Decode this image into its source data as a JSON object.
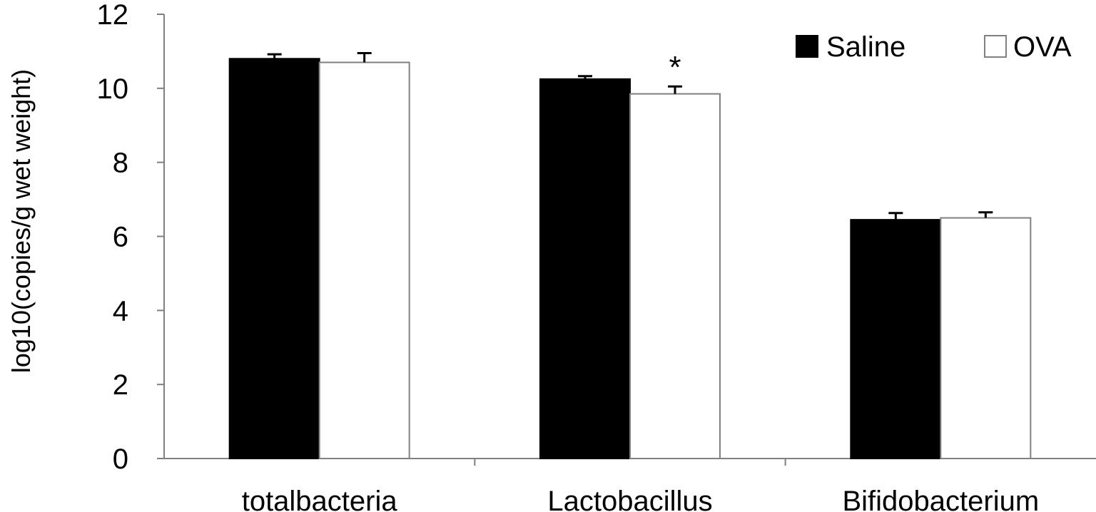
{
  "chart_data": {
    "type": "bar",
    "title": "",
    "xlabel": "",
    "ylabel": "log10(copies/g wet weight)",
    "ylim": [
      0,
      12
    ],
    "yticks": [
      0,
      2,
      4,
      6,
      8,
      10,
      12
    ],
    "grid": false,
    "legend_position": "top-right",
    "categories": [
      "totalbacteria",
      "Lactobacillus",
      "Bifidobacterium"
    ],
    "series": [
      {
        "name": "Saline",
        "color": "#000000",
        "values": [
          10.8,
          10.25,
          6.45
        ],
        "errors": [
          0.12,
          0.08,
          0.18
        ]
      },
      {
        "name": "OVA",
        "color": "#ffffff",
        "values": [
          10.7,
          9.85,
          6.5
        ],
        "errors": [
          0.25,
          0.2,
          0.15
        ]
      }
    ],
    "annotations": [
      {
        "text": "*",
        "category": "Lactobacillus",
        "series": "OVA"
      }
    ]
  }
}
